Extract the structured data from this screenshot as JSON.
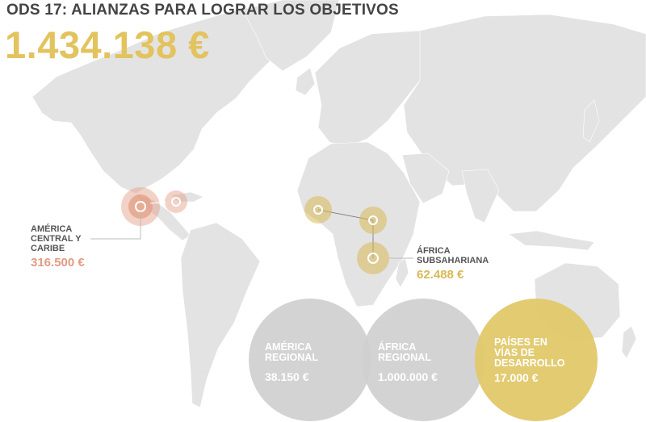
{
  "header": {
    "title": "ODS 17: ALIANZAS PARA LOGRAR LOS OBJETIVOS",
    "total": "1.434.138 €"
  },
  "regions": {
    "america_central": {
      "label_lines": [
        "AMÉRICA",
        "CENTRAL Y",
        "CARIBE"
      ],
      "value": "316.500 €",
      "color": "#e39b82"
    },
    "africa_subsahariana": {
      "label_lines": [
        "ÁFRICA",
        "SUBSAHARIANA"
      ],
      "value": "62.488 €",
      "color": "#d8b955"
    }
  },
  "bubbles": {
    "america_regional": {
      "label_lines": [
        "AMÉRICA",
        "REGIONAL"
      ],
      "value": "38.150 €",
      "color": "#cfcfcf"
    },
    "africa_regional": {
      "label_lines": [
        "ÁFRICA",
        "REGIONAL"
      ],
      "value": "1.000.000 €",
      "color": "#cfcfcf"
    },
    "paises_desarrollo": {
      "label_lines": [
        "PAÍSES EN",
        "VÍAS DE",
        "DESARROLLO"
      ],
      "value": "17.000 €",
      "color": "#e2c86a"
    }
  },
  "colors": {
    "map_land": "#e3e3e3",
    "title": "#444444",
    "total": "#e2c35e"
  }
}
